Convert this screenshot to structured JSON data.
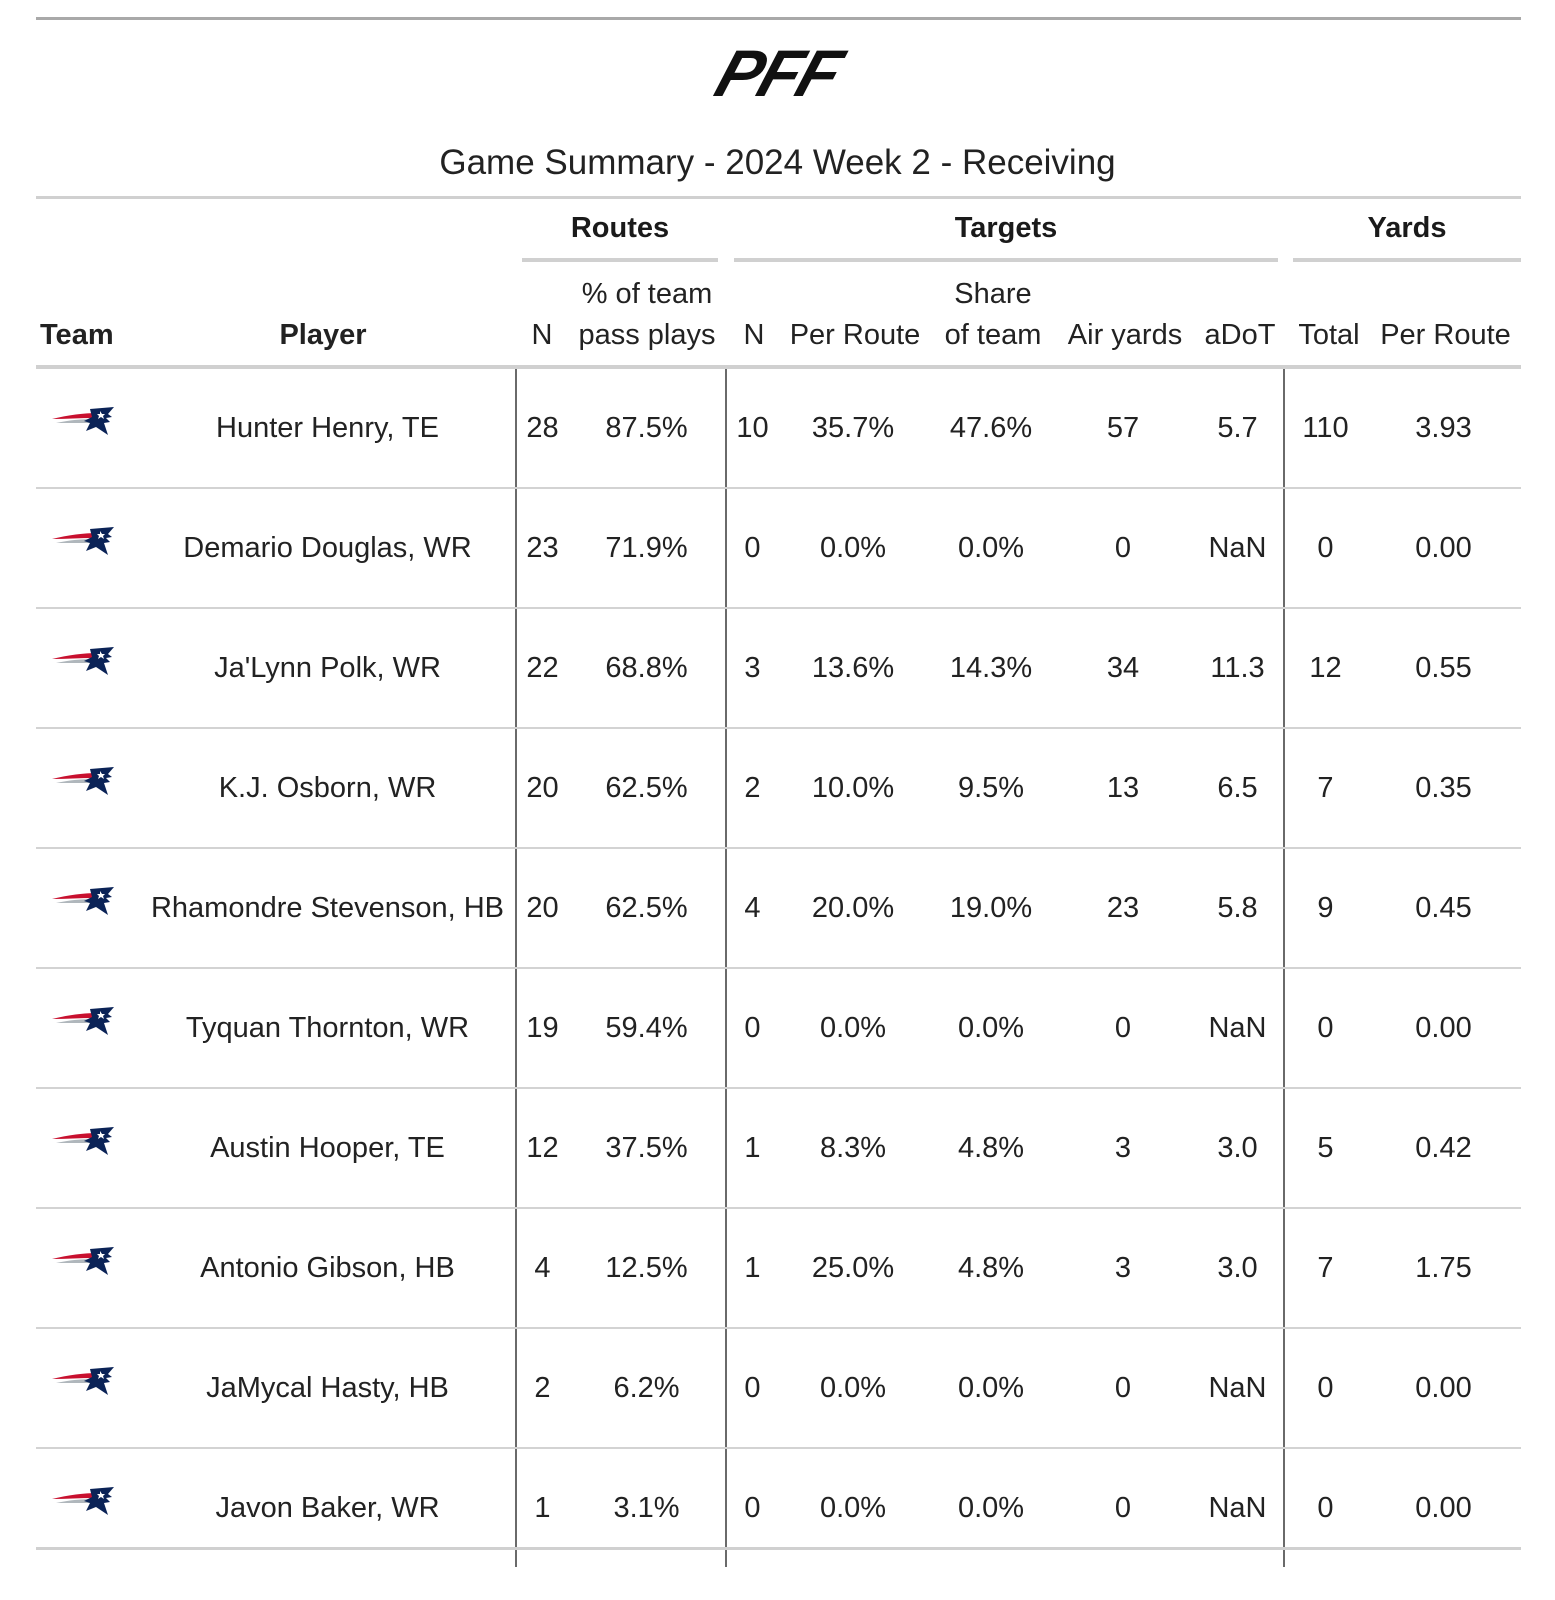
{
  "header": {
    "logo_text": "PFF",
    "title": "Game Summary - 2024 Week 2 - Receiving"
  },
  "spanners": {
    "routes": "Routes",
    "targets": "Targets",
    "yards": "Yards"
  },
  "columns": {
    "team": "Team",
    "player": "Player",
    "routes_n": "N",
    "routes_pct_l1": "% of team",
    "routes_pct_l2": "pass plays",
    "targets_n": "N",
    "targets_per_route": "Per Route",
    "targets_share_l1": "Share",
    "targets_share_l2": "of team",
    "air_yards": "Air yards",
    "adot": "aDoT",
    "yards_total": "Total",
    "yards_per_route": "Per Route"
  },
  "team_icon": "patriots-logo-icon",
  "colors": {
    "navy": "#0b2357",
    "red": "#c8102e",
    "silver": "#b0b7bc"
  },
  "rows": [
    {
      "player": "Hunter Henry, TE",
      "routes_n": "28",
      "routes_pct": "87.5%",
      "targets_n": "10",
      "targets_per_route": "35.7%",
      "targets_share": "47.6%",
      "air_yards": "57",
      "adot": "5.7",
      "yards_total": "110",
      "yards_per_route": "3.93"
    },
    {
      "player": "Demario Douglas, WR",
      "routes_n": "23",
      "routes_pct": "71.9%",
      "targets_n": "0",
      "targets_per_route": "0.0%",
      "targets_share": "0.0%",
      "air_yards": "0",
      "adot": "NaN",
      "yards_total": "0",
      "yards_per_route": "0.00"
    },
    {
      "player": "Ja'Lynn Polk, WR",
      "routes_n": "22",
      "routes_pct": "68.8%",
      "targets_n": "3",
      "targets_per_route": "13.6%",
      "targets_share": "14.3%",
      "air_yards": "34",
      "adot": "11.3",
      "yards_total": "12",
      "yards_per_route": "0.55"
    },
    {
      "player": "K.J. Osborn, WR",
      "routes_n": "20",
      "routes_pct": "62.5%",
      "targets_n": "2",
      "targets_per_route": "10.0%",
      "targets_share": "9.5%",
      "air_yards": "13",
      "adot": "6.5",
      "yards_total": "7",
      "yards_per_route": "0.35"
    },
    {
      "player": "Rhamondre Stevenson, HB",
      "routes_n": "20",
      "routes_pct": "62.5%",
      "targets_n": "4",
      "targets_per_route": "20.0%",
      "targets_share": "19.0%",
      "air_yards": "23",
      "adot": "5.8",
      "yards_total": "9",
      "yards_per_route": "0.45"
    },
    {
      "player": "Tyquan Thornton, WR",
      "routes_n": "19",
      "routes_pct": "59.4%",
      "targets_n": "0",
      "targets_per_route": "0.0%",
      "targets_share": "0.0%",
      "air_yards": "0",
      "adot": "NaN",
      "yards_total": "0",
      "yards_per_route": "0.00"
    },
    {
      "player": "Austin Hooper, TE",
      "routes_n": "12",
      "routes_pct": "37.5%",
      "targets_n": "1",
      "targets_per_route": "8.3%",
      "targets_share": "4.8%",
      "air_yards": "3",
      "adot": "3.0",
      "yards_total": "5",
      "yards_per_route": "0.42"
    },
    {
      "player": "Antonio Gibson, HB",
      "routes_n": "4",
      "routes_pct": "12.5%",
      "targets_n": "1",
      "targets_per_route": "25.0%",
      "targets_share": "4.8%",
      "air_yards": "3",
      "adot": "3.0",
      "yards_total": "7",
      "yards_per_route": "1.75"
    },
    {
      "player": "JaMycal Hasty, HB",
      "routes_n": "2",
      "routes_pct": "6.2%",
      "targets_n": "0",
      "targets_per_route": "0.0%",
      "targets_share": "0.0%",
      "air_yards": "0",
      "adot": "NaN",
      "yards_total": "0",
      "yards_per_route": "0.00"
    },
    {
      "player": "Javon Baker, WR",
      "routes_n": "1",
      "routes_pct": "3.1%",
      "targets_n": "0",
      "targets_per_route": "0.0%",
      "targets_share": "0.0%",
      "air_yards": "0",
      "adot": "NaN",
      "yards_total": "0",
      "yards_per_route": "0.00"
    }
  ]
}
